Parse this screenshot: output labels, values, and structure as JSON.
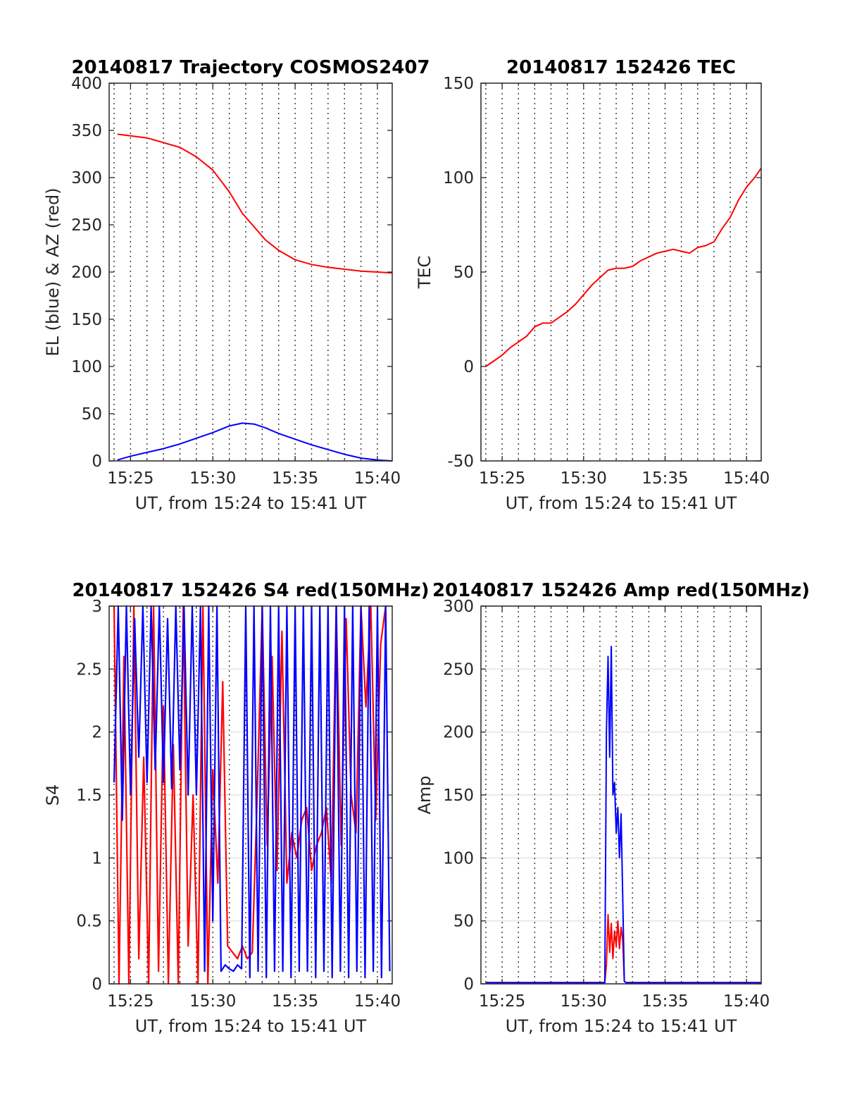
{
  "chart_data": [
    {
      "type": "line",
      "title": "20140817 Trajectory COSMOS2407",
      "xlabel": "UT, from 15:24 to 15:41 UT",
      "ylabel": "EL (blue) & AZ (red)",
      "xlim": [
        -0.3,
        16.9
      ],
      "ylim": [
        0,
        400
      ],
      "x_ticks": [
        1,
        6,
        11,
        16
      ],
      "x_tick_labels": [
        "15:25",
        "15:30",
        "15:35",
        "15:40"
      ],
      "y_ticks": [
        0,
        50,
        100,
        150,
        200,
        250,
        300,
        350,
        400
      ],
      "y_tick_labels": [
        "0",
        "50",
        "100",
        "150",
        "200",
        "250",
        "300",
        "350",
        "400"
      ],
      "grid": "x-dotted",
      "x_unit": "minutes after 15:24 UT",
      "series": [
        {
          "name": "AZ",
          "color": "#ff0000",
          "x": [
            0.2,
            2,
            4,
            5,
            6,
            7,
            7.8,
            8.5,
            9.2,
            10,
            11,
            12,
            13,
            14,
            15,
            16,
            16.9
          ],
          "y": [
            346,
            342,
            332,
            322,
            308,
            285,
            262,
            248,
            234,
            223,
            213,
            208,
            205,
            203,
            201,
            200,
            199
          ]
        },
        {
          "name": "EL",
          "color": "#0000ff",
          "x": [
            0.2,
            1,
            2,
            3,
            4,
            5,
            6,
            7,
            7.8,
            8.5,
            9.2,
            10,
            11,
            12,
            13,
            14,
            15,
            16,
            16.9
          ],
          "y": [
            1,
            5,
            9,
            13,
            18,
            24,
            30,
            37,
            40,
            39,
            35,
            29,
            23,
            17,
            12,
            7,
            3,
            1,
            0
          ]
        }
      ]
    },
    {
      "type": "line",
      "title": "20140817 152426 TEC",
      "xlabel": "UT, from 15:24 to 15:41 UT",
      "ylabel": "TEC",
      "xlim": [
        -0.3,
        16.9
      ],
      "ylim": [
        -50,
        150
      ],
      "x_ticks": [
        1,
        6,
        11,
        16
      ],
      "x_tick_labels": [
        "15:25",
        "15:30",
        "15:35",
        "15:40"
      ],
      "y_ticks": [
        -50,
        0,
        50,
        100,
        150
      ],
      "y_tick_labels": [
        "-50",
        "0",
        "50",
        "100",
        "150"
      ],
      "grid": "x-dotted",
      "x_unit": "minutes after 15:24 UT",
      "series": [
        {
          "name": "TEC",
          "color": "#ff0000",
          "x": [
            0,
            0.5,
            1,
            1.5,
            2,
            2.5,
            3,
            3.5,
            4,
            4.5,
            5,
            5.5,
            6,
            6.5,
            7,
            7.5,
            8,
            8.5,
            9,
            9.5,
            10,
            10.5,
            11,
            11.5,
            12,
            12.5,
            13,
            13.5,
            14,
            14.5,
            15,
            15.5,
            16,
            16.5,
            16.9
          ],
          "y": [
            0,
            3,
            6,
            10,
            13,
            16,
            21,
            23,
            23,
            26,
            29,
            33,
            38,
            43,
            47,
            51,
            52,
            52,
            53,
            56,
            58,
            60,
            61,
            62,
            61,
            60,
            63,
            64,
            66,
            73,
            79,
            88,
            95,
            100,
            105
          ]
        }
      ]
    },
    {
      "type": "line",
      "title": "20140817 152426 S4 red(150MHz)",
      "xlabel": "UT, from 15:24 to 15:41 UT",
      "ylabel": "S4",
      "xlim": [
        -0.3,
        16.9
      ],
      "ylim": [
        0,
        3
      ],
      "x_ticks": [
        1,
        6,
        11,
        16
      ],
      "x_tick_labels": [
        "15:25",
        "15:30",
        "15:35",
        "15:40"
      ],
      "y_ticks": [
        0,
        0.5,
        1,
        1.5,
        2,
        2.5,
        3
      ],
      "y_tick_labels": [
        "0",
        "0.5",
        "1",
        "1.5",
        "2",
        "2.5",
        "3"
      ],
      "grid": "dotted",
      "x_unit": "minutes after 15:24 UT",
      "series": [
        {
          "name": "red",
          "color": "#ff0000",
          "x": [
            0,
            0.3,
            0.6,
            0.9,
            1.2,
            1.5,
            1.8,
            2.1,
            2.4,
            2.7,
            3,
            3.3,
            3.6,
            3.9,
            4.2,
            4.5,
            4.8,
            5.1,
            5.4,
            5.7,
            6,
            6.3,
            6.6,
            6.9,
            7.2,
            7.5,
            7.8,
            8.1,
            8.4,
            8.7,
            9,
            9.3,
            9.6,
            9.9,
            10.2,
            10.5,
            10.8,
            11.1,
            11.4,
            11.7,
            12,
            12.3,
            12.6,
            12.9,
            13.2,
            13.5,
            13.8,
            14.1,
            14.4,
            14.7,
            15,
            15.3,
            15.6,
            15.9,
            16.2,
            16.5
          ],
          "y": [
            3,
            0,
            2.6,
            0,
            3,
            0.2,
            1.8,
            0,
            3,
            0.1,
            2.2,
            0,
            1.9,
            0,
            3,
            0.3,
            1.5,
            0,
            3,
            0,
            1.7,
            0.8,
            2.4,
            0.3,
            0.25,
            0.2,
            0.3,
            0.2,
            0.25,
            1.5,
            3,
            1.1,
            2.6,
            0.9,
            2.8,
            0.8,
            1.2,
            1,
            1.3,
            1.4,
            0.9,
            1.1,
            1.2,
            1.4,
            0.8,
            3,
            1.1,
            2.9,
            1.5,
            1.2,
            3,
            2.2,
            3,
            1.3,
            2.7,
            3
          ]
        },
        {
          "name": "blue",
          "color": "#0000ff",
          "x": [
            0,
            0.25,
            0.5,
            0.75,
            1,
            1.25,
            1.5,
            1.75,
            2,
            2.25,
            2.5,
            2.75,
            3,
            3.25,
            3.5,
            3.75,
            4,
            4.25,
            4.5,
            4.75,
            5,
            5.25,
            5.5,
            5.75,
            6,
            6.25,
            6.5,
            6.75,
            7,
            7.25,
            7.5,
            7.75,
            8,
            8.25,
            8.5,
            8.75,
            9,
            9.25,
            9.5,
            9.75,
            10,
            10.25,
            10.5,
            10.75,
            11,
            11.25,
            11.5,
            11.75,
            12,
            12.25,
            12.5,
            12.75,
            13,
            13.25,
            13.5,
            13.75,
            14,
            14.25,
            14.5,
            14.75,
            15,
            15.25,
            15.5,
            15.75,
            16,
            16.25,
            16.5,
            16.75
          ],
          "y": [
            1.6,
            3,
            1.3,
            3,
            1.5,
            2.9,
            1.8,
            3,
            1.6,
            3,
            1.7,
            3,
            1.6,
            2.9,
            1.55,
            3,
            1.7,
            3,
            1.5,
            3,
            1.5,
            3,
            0.1,
            3,
            0.5,
            3,
            0.1,
            0.15,
            0.12,
            0.1,
            0.15,
            0.12,
            3,
            0.05,
            3,
            0.1,
            3,
            0.05,
            3,
            0.1,
            3,
            0.1,
            3,
            0.05,
            3,
            0.1,
            3,
            0.1,
            3,
            0.05,
            3,
            0.1,
            3,
            0.05,
            3,
            0.1,
            3,
            0.05,
            3,
            0.1,
            3,
            0.05,
            3,
            0.1,
            3,
            0.05,
            3,
            0.1
          ]
        }
      ]
    },
    {
      "type": "line",
      "title": "20140817 152426 Amp red(150MHz)",
      "xlabel": "UT, from 15:24 to 15:41 UT",
      "ylabel": "Amp",
      "xlim": [
        -0.3,
        16.9
      ],
      "ylim": [
        0,
        300
      ],
      "x_ticks": [
        1,
        6,
        11,
        16
      ],
      "x_tick_labels": [
        "15:25",
        "15:30",
        "15:35",
        "15:40"
      ],
      "y_ticks": [
        0,
        50,
        100,
        150,
        200,
        250,
        300
      ],
      "y_tick_labels": [
        "0",
        "50",
        "100",
        "150",
        "200",
        "250",
        "300"
      ],
      "grid": "dotted",
      "x_unit": "minutes after 15:24 UT",
      "series": [
        {
          "name": "red",
          "color": "#ff0000",
          "x": [
            0,
            7.3,
            7.4,
            7.5,
            7.6,
            7.7,
            7.8,
            7.9,
            8.0,
            8.1,
            8.2,
            8.3,
            8.4,
            8.5,
            8.6,
            16.9
          ],
          "y": [
            1,
            1,
            15,
            55,
            25,
            48,
            20,
            42,
            30,
            50,
            28,
            45,
            35,
            2,
            1,
            1
          ]
        },
        {
          "name": "blue",
          "color": "#0000ff",
          "x": [
            0,
            7.3,
            7.4,
            7.5,
            7.6,
            7.7,
            7.8,
            7.9,
            8.0,
            8.1,
            8.2,
            8.3,
            8.4,
            8.5,
            8.6,
            16.9
          ],
          "y": [
            1,
            1,
            200,
            260,
            180,
            268,
            150,
            160,
            120,
            140,
            100,
            135,
            70,
            2,
            1,
            1
          ]
        }
      ]
    }
  ]
}
